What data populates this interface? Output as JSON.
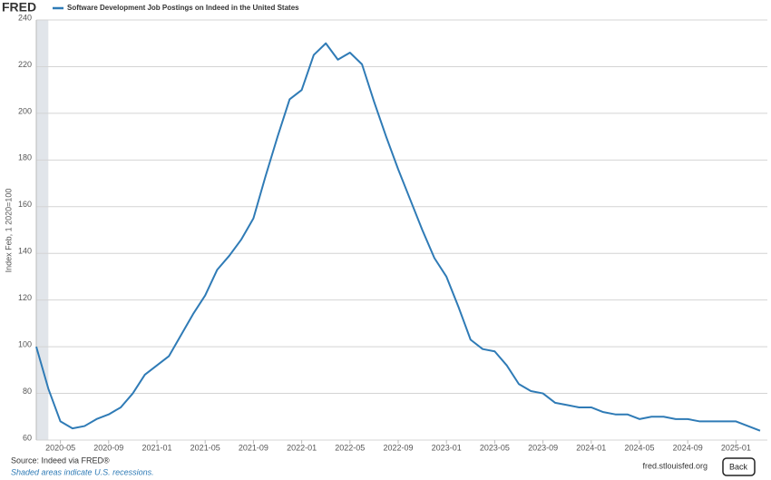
{
  "logo": "FRED",
  "source": "Source: Indeed via FRED®",
  "shading_note": "Shaded areas indicate U.S. recessions.",
  "site": "fred.stlouisfed.org",
  "back_button": "Back",
  "chart_data": {
    "type": "line",
    "y_label": "Index Feb, 1 2020=100",
    "series": [
      {
        "name": "Software Development Job Postings on Indeed in the United States",
        "color": "#2f7bb6",
        "values": [
          100,
          82,
          68,
          65,
          66,
          69,
          71,
          74,
          80,
          88,
          92,
          96,
          105,
          114,
          122,
          133,
          139,
          146,
          155,
          173,
          190,
          206,
          210,
          225,
          230,
          223,
          226,
          221,
          205,
          190,
          176,
          163,
          150,
          138,
          130,
          117,
          103,
          99,
          98,
          92,
          84,
          81,
          80,
          76,
          75,
          74,
          74,
          72,
          71,
          71,
          69,
          70,
          70,
          69,
          69,
          68,
          68,
          68,
          68,
          66,
          64
        ]
      }
    ],
    "x": [
      "2020-03",
      "2020-04",
      "2020-05",
      "2020-06",
      "2020-07",
      "2020-08",
      "2020-09",
      "2020-10",
      "2020-11",
      "2020-12",
      "2021-01",
      "2021-02",
      "2021-03",
      "2021-04",
      "2021-05",
      "2021-06",
      "2021-07",
      "2021-08",
      "2021-09",
      "2021-10",
      "2021-11",
      "2021-12",
      "2022-01",
      "2022-02",
      "2022-03",
      "2022-04",
      "2022-05",
      "2022-06",
      "2022-07",
      "2022-08",
      "2022-09",
      "2022-10",
      "2022-11",
      "2022-12",
      "2023-01",
      "2023-02",
      "2023-03",
      "2023-04",
      "2023-05",
      "2023-06",
      "2023-07",
      "2023-08",
      "2023-09",
      "2023-10",
      "2023-11",
      "2023-12",
      "2024-01",
      "2024-02",
      "2024-03",
      "2024-04",
      "2024-05",
      "2024-06",
      "2024-07",
      "2024-08",
      "2024-09",
      "2024-10",
      "2024-11",
      "2024-12",
      "2025-01",
      "2025-02",
      "2025-03"
    ],
    "xlim": [
      "2020-03",
      "2025-03"
    ],
    "xticks": [
      "2020-05",
      "2020-09",
      "2021-01",
      "2021-05",
      "2021-09",
      "2022-01",
      "2022-05",
      "2022-09",
      "2023-01",
      "2023-05",
      "2023-09",
      "2024-01",
      "2024-05",
      "2024-09",
      "2025-01"
    ],
    "ylim": [
      60,
      240
    ],
    "yticks": [
      60,
      80,
      100,
      120,
      140,
      160,
      180,
      200,
      220,
      240
    ],
    "grid": true,
    "recessions": [
      [
        "2020-03",
        "2020-04"
      ]
    ]
  }
}
